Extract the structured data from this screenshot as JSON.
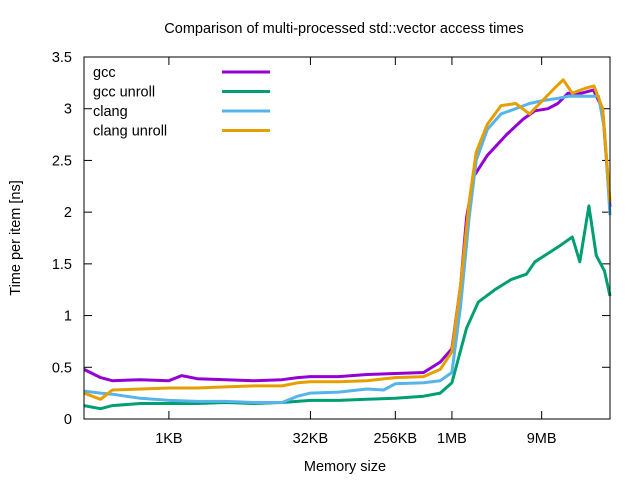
{
  "chart_data": {
    "type": "line",
    "title": "Comparison of multi-processed std::vector access times",
    "xlabel": "Memory size",
    "ylabel": "Time per item [ns]",
    "xscale": "log2",
    "x_unit": "bytes",
    "xlim": [
      128,
      50331648
    ],
    "ylim": [
      0,
      3.5
    ],
    "grid": false,
    "legend_position": "top-left",
    "x_ticks": [
      {
        "value": 1024,
        "label": "1KB"
      },
      {
        "value": 32768,
        "label": "32KB"
      },
      {
        "value": 262144,
        "label": "256KB"
      },
      {
        "value": 1048576,
        "label": "1MB"
      },
      {
        "value": 9437184,
        "label": "9MB"
      }
    ],
    "y_ticks": [
      {
        "value": 0,
        "label": "0"
      },
      {
        "value": 0.5,
        "label": "0.5"
      },
      {
        "value": 1,
        "label": "1"
      },
      {
        "value": 1.5,
        "label": "1.5"
      },
      {
        "value": 2,
        "label": "2"
      },
      {
        "value": 2.5,
        "label": "2.5"
      },
      {
        "value": 3,
        "label": "3"
      },
      {
        "value": 3.5,
        "label": "3.5"
      }
    ],
    "series": [
      {
        "name": "gcc",
        "color": "#9400d3",
        "points": [
          [
            128,
            0.48
          ],
          [
            192,
            0.4
          ],
          [
            256,
            0.37
          ],
          [
            512,
            0.38
          ],
          [
            1024,
            0.37
          ],
          [
            1400,
            0.42
          ],
          [
            2048,
            0.39
          ],
          [
            4096,
            0.38
          ],
          [
            8192,
            0.37
          ],
          [
            16384,
            0.38
          ],
          [
            24000,
            0.4
          ],
          [
            32768,
            0.41
          ],
          [
            65536,
            0.41
          ],
          [
            131072,
            0.43
          ],
          [
            262144,
            0.44
          ],
          [
            524288,
            0.45
          ],
          [
            786432,
            0.55
          ],
          [
            1048576,
            0.68
          ],
          [
            1300000,
            1.3
          ],
          [
            1500000,
            1.95
          ],
          [
            1800000,
            2.35
          ],
          [
            2500000,
            2.55
          ],
          [
            4000000,
            2.75
          ],
          [
            6000000,
            2.9
          ],
          [
            8000000,
            2.98
          ],
          [
            11000000,
            3.0
          ],
          [
            14000000,
            3.05
          ],
          [
            18000000,
            3.15
          ],
          [
            25000000,
            3.15
          ],
          [
            33554432,
            3.18
          ],
          [
            42000000,
            3.0
          ],
          [
            50331648,
            2.05
          ]
        ]
      },
      {
        "name": "gcc unroll",
        "color": "#009e73",
        "points": [
          [
            128,
            0.13
          ],
          [
            192,
            0.1
          ],
          [
            256,
            0.13
          ],
          [
            512,
            0.15
          ],
          [
            1024,
            0.15
          ],
          [
            2048,
            0.15
          ],
          [
            4096,
            0.16
          ],
          [
            8192,
            0.15
          ],
          [
            16384,
            0.16
          ],
          [
            32768,
            0.18
          ],
          [
            65536,
            0.18
          ],
          [
            131072,
            0.19
          ],
          [
            262144,
            0.2
          ],
          [
            524288,
            0.22
          ],
          [
            786432,
            0.25
          ],
          [
            1048576,
            0.35
          ],
          [
            1500000,
            0.88
          ],
          [
            2000000,
            1.13
          ],
          [
            3000000,
            1.25
          ],
          [
            4500000,
            1.35
          ],
          [
            6500000,
            1.4
          ],
          [
            8000000,
            1.52
          ],
          [
            11000000,
            1.6
          ],
          [
            15000000,
            1.68
          ],
          [
            20000000,
            1.76
          ],
          [
            24000000,
            1.52
          ],
          [
            30000000,
            2.06
          ],
          [
            36000000,
            1.58
          ],
          [
            44000000,
            1.43
          ],
          [
            50331648,
            1.19
          ]
        ]
      },
      {
        "name": "clang",
        "color": "#56b4e9",
        "points": [
          [
            128,
            0.27
          ],
          [
            192,
            0.25
          ],
          [
            256,
            0.24
          ],
          [
            512,
            0.2
          ],
          [
            1024,
            0.18
          ],
          [
            2048,
            0.17
          ],
          [
            4096,
            0.17
          ],
          [
            8192,
            0.16
          ],
          [
            16384,
            0.16
          ],
          [
            24000,
            0.22
          ],
          [
            32768,
            0.25
          ],
          [
            65536,
            0.26
          ],
          [
            131072,
            0.29
          ],
          [
            196608,
            0.28
          ],
          [
            262144,
            0.34
          ],
          [
            524288,
            0.35
          ],
          [
            786432,
            0.37
          ],
          [
            1048576,
            0.45
          ],
          [
            1300000,
            1.1
          ],
          [
            1600000,
            1.95
          ],
          [
            1900000,
            2.5
          ],
          [
            2500000,
            2.8
          ],
          [
            3500000,
            2.95
          ],
          [
            5000000,
            3.0
          ],
          [
            7000000,
            3.05
          ],
          [
            10000000,
            3.08
          ],
          [
            14000000,
            3.1
          ],
          [
            18000000,
            3.12
          ],
          [
            30000000,
            3.12
          ],
          [
            38000000,
            3.12
          ],
          [
            44000000,
            2.8
          ],
          [
            50331648,
            1.97
          ]
        ]
      },
      {
        "name": "clang unroll",
        "color": "#e69f00",
        "points": [
          [
            128,
            0.25
          ],
          [
            192,
            0.19
          ],
          [
            256,
            0.28
          ],
          [
            512,
            0.29
          ],
          [
            1024,
            0.3
          ],
          [
            2048,
            0.3
          ],
          [
            4096,
            0.31
          ],
          [
            8192,
            0.32
          ],
          [
            16384,
            0.32
          ],
          [
            24000,
            0.35
          ],
          [
            32768,
            0.36
          ],
          [
            65536,
            0.36
          ],
          [
            131072,
            0.37
          ],
          [
            262144,
            0.4
          ],
          [
            524288,
            0.41
          ],
          [
            786432,
            0.48
          ],
          [
            1048576,
            0.65
          ],
          [
            1300000,
            1.3
          ],
          [
            1600000,
            2.1
          ],
          [
            1900000,
            2.58
          ],
          [
            2500000,
            2.85
          ],
          [
            3500000,
            3.03
          ],
          [
            5000000,
            3.05
          ],
          [
            7000000,
            2.95
          ],
          [
            9000000,
            3.05
          ],
          [
            13000000,
            3.2
          ],
          [
            16000000,
            3.28
          ],
          [
            20000000,
            3.15
          ],
          [
            28000000,
            3.2
          ],
          [
            34000000,
            3.22
          ],
          [
            42000000,
            3.0
          ],
          [
            50331648,
            2.1
          ]
        ]
      }
    ]
  }
}
